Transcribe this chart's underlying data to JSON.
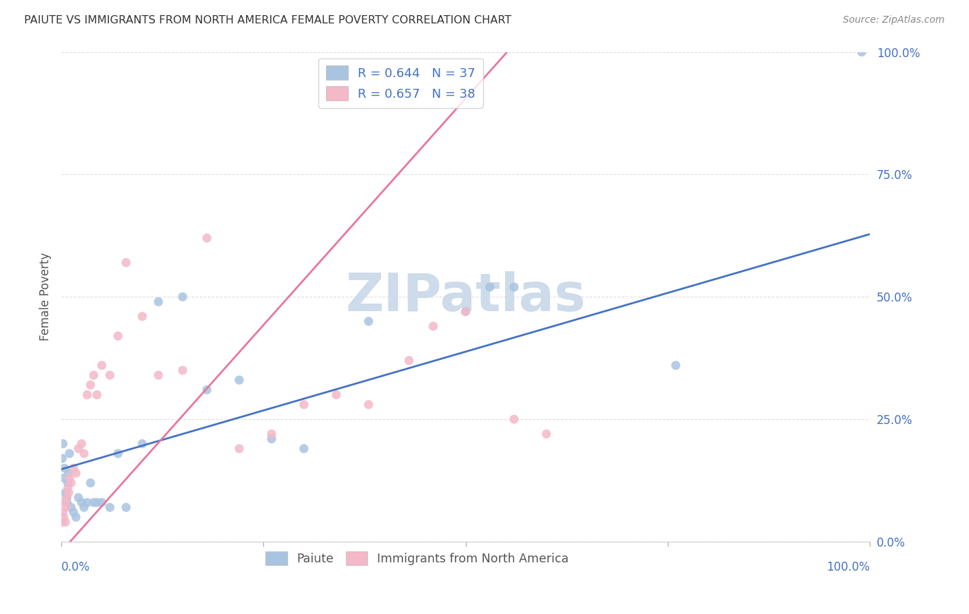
{
  "title": "PAIUTE VS IMMIGRANTS FROM NORTH AMERICA FEMALE POVERTY CORRELATION CHART",
  "source": "Source: ZipAtlas.com",
  "ylabel": "Female Poverty",
  "yticks": [
    "0.0%",
    "25.0%",
    "50.0%",
    "75.0%",
    "100.0%"
  ],
  "ytick_vals": [
    0.0,
    0.25,
    0.5,
    0.75,
    1.0
  ],
  "legend_labels": [
    "Paiute",
    "Immigrants from North America"
  ],
  "paiute_R": "0.644",
  "paiute_N": "37",
  "immigrants_R": "0.657",
  "immigrants_N": "38",
  "paiute_color": "#a8c4e0",
  "immigrants_color": "#f4b8c8",
  "paiute_line_color": "#4472c4",
  "immigrants_line_color": "#e8779a",
  "watermark_color": "#d0dce8",
  "background_color": "#ffffff",
  "grid_color": "#d8d8d8",
  "title_color": "#333333",
  "axis_label_color": "#4472c4",
  "paiute_x": [
    0.001,
    0.002,
    0.003,
    0.004,
    0.005,
    0.006,
    0.007,
    0.008,
    0.009,
    0.01,
    0.012,
    0.015,
    0.018,
    0.021,
    0.025,
    0.028,
    0.032,
    0.036,
    0.04,
    0.044,
    0.05,
    0.06,
    0.07,
    0.08,
    0.1,
    0.12,
    0.15,
    0.18,
    0.22,
    0.26,
    0.3,
    0.38,
    0.5,
    0.53,
    0.56,
    0.76,
    0.99
  ],
  "paiute_y": [
    0.17,
    0.2,
    0.13,
    0.15,
    0.1,
    0.09,
    0.08,
    0.12,
    0.14,
    0.18,
    0.07,
    0.06,
    0.05,
    0.09,
    0.08,
    0.07,
    0.08,
    0.12,
    0.08,
    0.08,
    0.08,
    0.07,
    0.18,
    0.07,
    0.2,
    0.49,
    0.5,
    0.31,
    0.33,
    0.21,
    0.19,
    0.45,
    0.47,
    0.52,
    0.52,
    0.36,
    1.0
  ],
  "immigrants_x": [
    0.001,
    0.002,
    0.003,
    0.004,
    0.005,
    0.006,
    0.007,
    0.008,
    0.009,
    0.01,
    0.012,
    0.015,
    0.018,
    0.021,
    0.025,
    0.028,
    0.032,
    0.036,
    0.04,
    0.044,
    0.05,
    0.06,
    0.07,
    0.08,
    0.1,
    0.12,
    0.15,
    0.18,
    0.22,
    0.26,
    0.3,
    0.34,
    0.38,
    0.43,
    0.46,
    0.5,
    0.56,
    0.6
  ],
  "immigrants_y": [
    0.04,
    0.06,
    0.05,
    0.08,
    0.04,
    0.07,
    0.09,
    0.11,
    0.1,
    0.13,
    0.12,
    0.15,
    0.14,
    0.19,
    0.2,
    0.18,
    0.3,
    0.32,
    0.34,
    0.3,
    0.36,
    0.34,
    0.42,
    0.57,
    0.46,
    0.34,
    0.35,
    0.62,
    0.19,
    0.22,
    0.28,
    0.3,
    0.28,
    0.37,
    0.44,
    0.47,
    0.25,
    0.22
  ],
  "paiute_trendline": [
    0.148,
    0.628
  ],
  "immigrants_trendline": [
    -0.02,
    1.85
  ]
}
